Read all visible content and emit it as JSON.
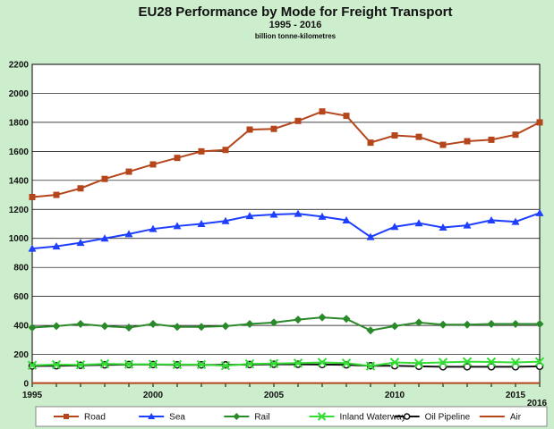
{
  "chart_data": {
    "type": "line",
    "title": "EU28 Performance by Mode for Freight Transport",
    "subtitle": "1995 - 2016",
    "unit_label": "billion tonne-kilometres",
    "x": [
      1995,
      1996,
      1997,
      1998,
      1999,
      2000,
      2001,
      2002,
      2003,
      2004,
      2005,
      2006,
      2007,
      2008,
      2009,
      2010,
      2011,
      2012,
      2013,
      2014,
      2015,
      2016
    ],
    "x_tick_labels": [
      "1995",
      "2000",
      "2005",
      "2010",
      "2015",
      "2016"
    ],
    "xlim": [
      1995,
      2016
    ],
    "ylim": [
      0,
      2200
    ],
    "y_ticks": [
      0,
      200,
      400,
      600,
      800,
      1000,
      1200,
      1400,
      1600,
      1800,
      2000,
      2200
    ],
    "grid": true,
    "legend_position": "bottom",
    "series": [
      {
        "name": "Road",
        "color": "#b5451b",
        "marker": "square",
        "values": [
          1285,
          1300,
          1345,
          1410,
          1460,
          1510,
          1555,
          1600,
          1610,
          1750,
          1755,
          1810,
          1875,
          1845,
          1660,
          1710,
          1700,
          1645,
          1670,
          1680,
          1715,
          1800
        ]
      },
      {
        "name": "Sea",
        "color": "#1f3fff",
        "marker": "triangle",
        "values": [
          930,
          945,
          970,
          1000,
          1030,
          1065,
          1085,
          1100,
          1120,
          1155,
          1165,
          1170,
          1150,
          1125,
          1010,
          1080,
          1105,
          1075,
          1090,
          1125,
          1115,
          1175
        ]
      },
      {
        "name": "Rail",
        "color": "#2a8a2a",
        "marker": "diamond",
        "values": [
          385,
          395,
          410,
          395,
          385,
          410,
          390,
          390,
          395,
          410,
          420,
          440,
          455,
          445,
          365,
          395,
          420,
          405,
          405,
          410,
          410,
          410
        ]
      },
      {
        "name": "Inland Waterway",
        "color": "#33dd33",
        "marker": "x",
        "values": [
          125,
          130,
          128,
          135,
          132,
          132,
          130,
          130,
          122,
          135,
          137,
          140,
          145,
          140,
          120,
          145,
          140,
          145,
          150,
          148,
          145,
          150
        ]
      },
      {
        "name": "Oil Pipeline",
        "color": "#111111",
        "marker": "circle",
        "values": [
          120,
          122,
          125,
          128,
          130,
          130,
          128,
          128,
          128,
          130,
          132,
          132,
          130,
          128,
          122,
          122,
          118,
          115,
          115,
          115,
          115,
          118
        ]
      },
      {
        "name": "Air",
        "color": "#b5451b",
        "marker": "none",
        "values": [
          2,
          2,
          2,
          2,
          2,
          2,
          2,
          2,
          2,
          2,
          2,
          2,
          2,
          2,
          2,
          2,
          2,
          2,
          2,
          2,
          2,
          2
        ]
      }
    ]
  }
}
